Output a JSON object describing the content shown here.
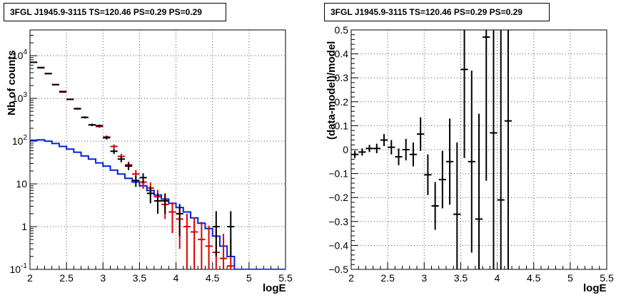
{
  "colors": {
    "data": "#000000",
    "model": "#dd0000",
    "background_model": "#0022dd",
    "grid": "#555555"
  },
  "chart_data": [
    {
      "type": "scatter",
      "title": "3FGL J1945.9-3115 TS=120.46 PS=0.29 PS=0.29",
      "xlabel": "logE",
      "ylabel": "Nb of counts",
      "xlim": [
        2,
        5.5
      ],
      "ylim": [
        0.1,
        40000
      ],
      "yscale": "log",
      "grid": true,
      "x_ticks": [
        "2",
        "2.5",
        "3",
        "3.5",
        "4",
        "4.5",
        "5",
        "5.5"
      ],
      "y_ticks": [
        "10^-1",
        "1",
        "10",
        "10^2",
        "10^3",
        "10^4"
      ],
      "series": [
        {
          "role": "data",
          "style": "errorbar",
          "color": "#000000",
          "x": [
            2.05,
            2.15,
            2.25,
            2.35,
            2.45,
            2.55,
            2.65,
            2.75,
            2.85,
            2.95,
            3.05,
            3.15,
            3.25,
            3.35,
            3.45,
            3.55,
            3.65,
            3.75,
            3.85,
            4.05,
            4.55,
            4.75
          ],
          "y": [
            7000,
            5200,
            3800,
            2100,
            1450,
            950,
            570,
            360,
            240,
            230,
            120,
            58,
            38,
            26,
            12,
            14,
            6,
            4,
            4,
            2,
            1,
            1
          ],
          "yerr_low": [
            80,
            70,
            60,
            45,
            38,
            30,
            24,
            19,
            15,
            15,
            11,
            8,
            6,
            5,
            3.5,
            3.7,
            2.5,
            2,
            2,
            1.4,
            0.8,
            0.8
          ],
          "yerr_high": [
            80,
            70,
            60,
            45,
            38,
            30,
            24,
            19,
            15,
            15,
            11,
            8,
            6,
            5,
            3.5,
            3.7,
            2.5,
            2,
            2,
            1.4,
            1.3,
            1.3
          ]
        },
        {
          "role": "model",
          "style": "errorbar",
          "color": "#dd0000",
          "x": [
            2.05,
            2.15,
            2.25,
            2.35,
            2.45,
            2.55,
            2.65,
            2.75,
            2.85,
            2.95,
            3.05,
            3.15,
            3.25,
            3.35,
            3.45,
            3.55,
            3.65,
            3.75,
            3.85,
            3.95,
            4.05,
            4.15,
            4.25,
            4.35,
            4.45,
            4.55,
            4.65,
            4.75
          ],
          "y": [
            7000,
            5300,
            3800,
            2100,
            1400,
            950,
            580,
            360,
            240,
            220,
            125,
            75,
            44,
            28,
            17,
            11,
            8,
            5,
            3.3,
            2.2,
            1.5,
            1,
            0.75,
            0.5,
            0.35,
            0.25,
            0.18,
            0.12
          ],
          "yerr_low": [
            80,
            70,
            60,
            45,
            37,
            30,
            24,
            19,
            15,
            15,
            11,
            8.5,
            6.5,
            5.2,
            4.1,
            3.3,
            2.8,
            2.2,
            1.8,
            1.5,
            1.2,
            0.9,
            0.7,
            0.45,
            0.32,
            0.23,
            0.17,
            0.11
          ],
          "yerr_high": [
            80,
            70,
            60,
            45,
            37,
            30,
            24,
            19,
            15,
            15,
            11,
            8.5,
            6.5,
            5.2,
            4.1,
            3.3,
            2.8,
            2.2,
            1.8,
            1.5,
            1.2,
            1,
            0.9,
            0.8,
            0.7,
            0.6,
            0.5,
            0.4
          ]
        },
        {
          "role": "background_model",
          "style": "step",
          "color": "#0022dd",
          "edges": [
            2.0,
            2.1,
            2.2,
            2.3,
            2.4,
            2.5,
            2.6,
            2.7,
            2.8,
            2.9,
            3.0,
            3.1,
            3.2,
            3.3,
            3.4,
            3.5,
            3.6,
            3.7,
            3.8,
            3.9,
            4.0,
            4.1,
            4.2,
            4.3,
            4.4,
            4.5,
            4.6,
            4.7,
            4.8,
            4.9,
            5.0,
            5.1,
            5.2,
            5.3,
            5.4,
            5.5
          ],
          "values": [
            105,
            107,
            100,
            88,
            75,
            65,
            55,
            45,
            38,
            31,
            26,
            21,
            17,
            13.5,
            11,
            9,
            7,
            5.5,
            4.4,
            3.5,
            2.8,
            2.2,
            1.6,
            1.2,
            0.9,
            0.6,
            0.35,
            0.2,
            0.1,
            0.1,
            0.1,
            0.1,
            0.1,
            0.1,
            0.1
          ]
        }
      ]
    },
    {
      "type": "scatter",
      "title": "3FGL J1945.9-3115 TS=120.46 PS=0.29 PS=0.29",
      "xlabel": "logE",
      "ylabel": "(data-model)/model",
      "xlim": [
        2,
        5.5
      ],
      "ylim": [
        -0.5,
        0.5
      ],
      "grid": true,
      "x_ticks": [
        "2",
        "2.5",
        "3",
        "3.5",
        "4",
        "4.5",
        "5",
        "5.5"
      ],
      "y_ticks": [
        "-0.5",
        "-0.4",
        "-0.3",
        "-0.2",
        "-0.1",
        "0",
        "0.1",
        "0.2",
        "0.3",
        "0.4",
        "0.5"
      ],
      "series": [
        {
          "role": "residuals",
          "style": "errorbar",
          "color": "#000000",
          "x": [
            2.05,
            2.15,
            2.25,
            2.35,
            2.45,
            2.55,
            2.65,
            2.75,
            2.85,
            2.95,
            3.05,
            3.15,
            3.25,
            3.35,
            3.45,
            3.55,
            3.65,
            3.75,
            3.85,
            3.95,
            4.05,
            4.15
          ],
          "y": [
            -0.02,
            -0.01,
            0.005,
            0.005,
            0.04,
            0.01,
            -0.03,
            0.0,
            -0.02,
            0.065,
            -0.105,
            -0.235,
            -0.125,
            -0.05,
            -0.27,
            0.335,
            -0.05,
            -0.29,
            0.47,
            0.07,
            -0.21,
            0.12
          ],
          "yerr": [
            0.015,
            0.015,
            0.015,
            0.02,
            0.025,
            0.03,
            0.035,
            0.045,
            0.05,
            0.07,
            0.085,
            0.1,
            0.12,
            0.18,
            0.3,
            0.37,
            0.38,
            0.44,
            0.6,
            0.9,
            1.0,
            1.0
          ]
        }
      ]
    }
  ]
}
